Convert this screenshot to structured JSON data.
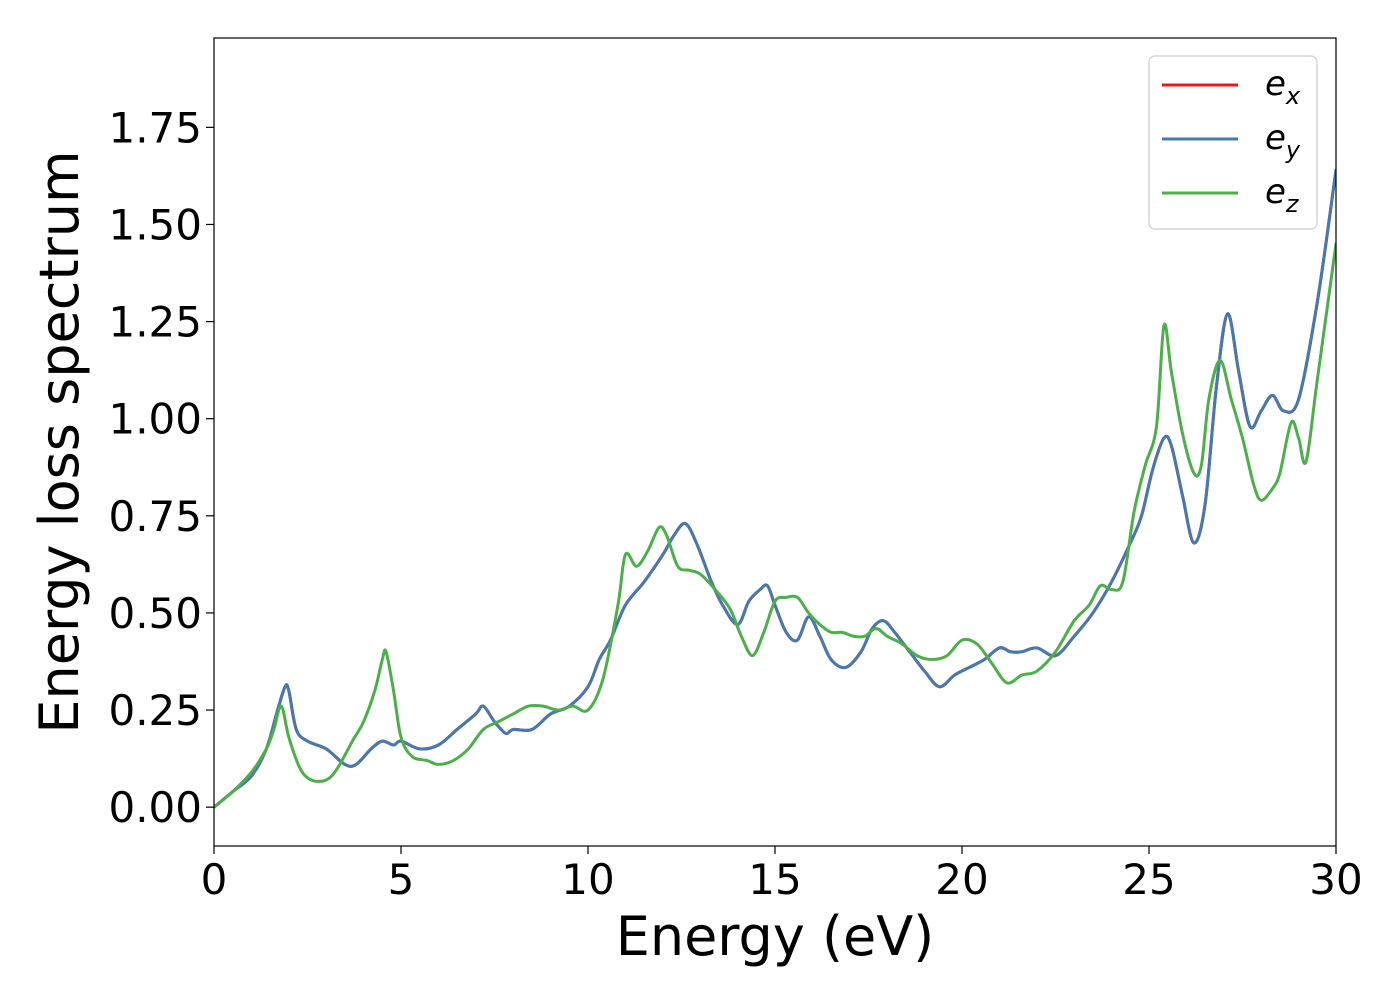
{
  "chart_data": {
    "type": "line",
    "title": "",
    "xlabel": "Energy (eV)",
    "ylabel": "Energy loss spectrum",
    "xlim": [
      0,
      30
    ],
    "ylim": [
      -0.1,
      1.98
    ],
    "xticks": [
      0,
      5,
      10,
      15,
      20,
      25,
      30
    ],
    "xtick_labels": [
      "0",
      "5",
      "10",
      "15",
      "20",
      "25",
      "30"
    ],
    "yticks": [
      0,
      0.25,
      0.5,
      0.75,
      1.0,
      1.25,
      1.5,
      1.75
    ],
    "ytick_labels": [
      "0.00",
      "0.25",
      "0.50",
      "0.75",
      "1.00",
      "1.25",
      "1.50",
      "1.75"
    ],
    "grid": false,
    "legend_position": "top-right",
    "series": [
      {
        "name": "e_x",
        "legend_base": "e",
        "legend_sub": "x",
        "color": "#e41a1c",
        "x": [
          0,
          0.5,
          1,
          1.4,
          1.7,
          1.9,
          2.0,
          2.2,
          2.5,
          3.0,
          3.5,
          3.8,
          4.2,
          4.5,
          4.8,
          5.0,
          5.5,
          6.0,
          6.5,
          7.0,
          7.2,
          7.5,
          7.8,
          8.0,
          8.5,
          9.0,
          9.5,
          10.0,
          10.3,
          10.6,
          11.0,
          11.5,
          12.0,
          12.3,
          12.6,
          12.9,
          13.3,
          13.6,
          14.0,
          14.3,
          14.6,
          14.8,
          15.0,
          15.3,
          15.6,
          15.9,
          16.2,
          16.5,
          16.9,
          17.3,
          17.6,
          17.9,
          18.2,
          18.6,
          19.0,
          19.4,
          19.8,
          20.2,
          20.6,
          21.0,
          21.3,
          21.6,
          22.0,
          22.5,
          23.0,
          23.5,
          24.0,
          24.5,
          24.8,
          25.1,
          25.4,
          25.6,
          25.9,
          26.2,
          26.5,
          26.8,
          27.1,
          27.4,
          27.7,
          28.0,
          28.3,
          28.6,
          29.0,
          29.5,
          30.0
        ],
        "y": [
          0,
          0.04,
          0.08,
          0.15,
          0.25,
          0.31,
          0.3,
          0.2,
          0.17,
          0.15,
          0.11,
          0.11,
          0.15,
          0.17,
          0.16,
          0.17,
          0.15,
          0.16,
          0.2,
          0.24,
          0.26,
          0.22,
          0.19,
          0.2,
          0.2,
          0.24,
          0.26,
          0.31,
          0.38,
          0.43,
          0.52,
          0.58,
          0.65,
          0.7,
          0.73,
          0.68,
          0.58,
          0.52,
          0.47,
          0.53,
          0.56,
          0.57,
          0.52,
          0.45,
          0.43,
          0.49,
          0.44,
          0.38,
          0.36,
          0.4,
          0.46,
          0.48,
          0.45,
          0.4,
          0.35,
          0.31,
          0.34,
          0.36,
          0.38,
          0.41,
          0.4,
          0.4,
          0.41,
          0.39,
          0.44,
          0.5,
          0.58,
          0.68,
          0.75,
          0.87,
          0.95,
          0.93,
          0.8,
          0.68,
          0.78,
          1.08,
          1.27,
          1.12,
          0.98,
          1.02,
          1.06,
          1.02,
          1.05,
          1.3,
          1.64
        ]
      },
      {
        "name": "e_y",
        "legend_base": "e",
        "legend_sub": "y",
        "color": "#4479b2",
        "x": [
          0,
          0.5,
          1,
          1.4,
          1.7,
          1.9,
          2.0,
          2.2,
          2.5,
          3.0,
          3.5,
          3.8,
          4.2,
          4.5,
          4.8,
          5.0,
          5.5,
          6.0,
          6.5,
          7.0,
          7.2,
          7.5,
          7.8,
          8.0,
          8.5,
          9.0,
          9.5,
          10.0,
          10.3,
          10.6,
          11.0,
          11.5,
          12.0,
          12.3,
          12.6,
          12.9,
          13.3,
          13.6,
          14.0,
          14.3,
          14.6,
          14.8,
          15.0,
          15.3,
          15.6,
          15.9,
          16.2,
          16.5,
          16.9,
          17.3,
          17.6,
          17.9,
          18.2,
          18.6,
          19.0,
          19.4,
          19.8,
          20.2,
          20.6,
          21.0,
          21.3,
          21.6,
          22.0,
          22.5,
          23.0,
          23.5,
          24.0,
          24.5,
          24.8,
          25.1,
          25.4,
          25.6,
          25.9,
          26.2,
          26.5,
          26.8,
          27.1,
          27.4,
          27.7,
          28.0,
          28.3,
          28.6,
          29.0,
          29.5,
          30.0
        ],
        "y": [
          0,
          0.04,
          0.08,
          0.15,
          0.25,
          0.31,
          0.3,
          0.2,
          0.17,
          0.15,
          0.11,
          0.11,
          0.15,
          0.17,
          0.16,
          0.17,
          0.15,
          0.16,
          0.2,
          0.24,
          0.26,
          0.22,
          0.19,
          0.2,
          0.2,
          0.24,
          0.26,
          0.31,
          0.38,
          0.43,
          0.52,
          0.58,
          0.65,
          0.7,
          0.73,
          0.68,
          0.58,
          0.52,
          0.47,
          0.53,
          0.56,
          0.57,
          0.52,
          0.45,
          0.43,
          0.49,
          0.44,
          0.38,
          0.36,
          0.4,
          0.46,
          0.48,
          0.45,
          0.4,
          0.35,
          0.31,
          0.34,
          0.36,
          0.38,
          0.41,
          0.4,
          0.4,
          0.41,
          0.39,
          0.44,
          0.5,
          0.58,
          0.68,
          0.75,
          0.87,
          0.95,
          0.93,
          0.8,
          0.68,
          0.78,
          1.08,
          1.27,
          1.12,
          0.98,
          1.02,
          1.06,
          1.02,
          1.05,
          1.3,
          1.64
        ]
      },
      {
        "name": "e_z",
        "legend_base": "e",
        "legend_sub": "z",
        "color": "#4daf4a",
        "x": [
          0,
          0.5,
          1,
          1.4,
          1.6,
          1.8,
          2.0,
          2.3,
          2.6,
          3.0,
          3.3,
          3.7,
          4.0,
          4.3,
          4.5,
          4.6,
          4.8,
          5.0,
          5.3,
          5.7,
          6.0,
          6.4,
          6.8,
          7.2,
          7.6,
          8.0,
          8.4,
          8.8,
          9.2,
          9.6,
          10.0,
          10.4,
          10.8,
          11.0,
          11.3,
          11.6,
          11.9,
          12.1,
          12.4,
          12.7,
          13.0,
          13.4,
          13.8,
          14.1,
          14.4,
          14.7,
          15.0,
          15.3,
          15.6,
          15.9,
          16.2,
          16.5,
          16.8,
          17.1,
          17.4,
          17.7,
          18.0,
          18.4,
          18.8,
          19.2,
          19.6,
          20.0,
          20.4,
          20.8,
          21.2,
          21.6,
          22.0,
          22.5,
          23.0,
          23.4,
          23.7,
          24.0,
          24.3,
          24.6,
          24.9,
          25.2,
          25.4,
          25.6,
          25.9,
          26.2,
          26.4,
          26.6,
          26.9,
          27.2,
          27.5,
          27.8,
          28.0,
          28.3,
          28.5,
          28.8,
          29.0,
          29.2,
          29.5,
          30.0
        ],
        "y": [
          0,
          0.04,
          0.09,
          0.15,
          0.2,
          0.26,
          0.18,
          0.1,
          0.07,
          0.07,
          0.1,
          0.17,
          0.22,
          0.3,
          0.38,
          0.4,
          0.3,
          0.18,
          0.13,
          0.12,
          0.11,
          0.12,
          0.15,
          0.2,
          0.22,
          0.24,
          0.26,
          0.26,
          0.25,
          0.26,
          0.25,
          0.33,
          0.52,
          0.65,
          0.62,
          0.66,
          0.72,
          0.7,
          0.62,
          0.61,
          0.6,
          0.56,
          0.51,
          0.44,
          0.39,
          0.45,
          0.53,
          0.54,
          0.54,
          0.5,
          0.47,
          0.45,
          0.45,
          0.44,
          0.44,
          0.46,
          0.44,
          0.42,
          0.39,
          0.38,
          0.39,
          0.43,
          0.42,
          0.37,
          0.32,
          0.34,
          0.35,
          0.4,
          0.48,
          0.52,
          0.57,
          0.56,
          0.58,
          0.76,
          0.88,
          0.98,
          1.24,
          1.12,
          0.96,
          0.86,
          0.88,
          1.05,
          1.15,
          1.05,
          0.95,
          0.83,
          0.79,
          0.82,
          0.86,
          0.99,
          0.95,
          0.89,
          1.1,
          1.45
        ]
      }
    ]
  }
}
